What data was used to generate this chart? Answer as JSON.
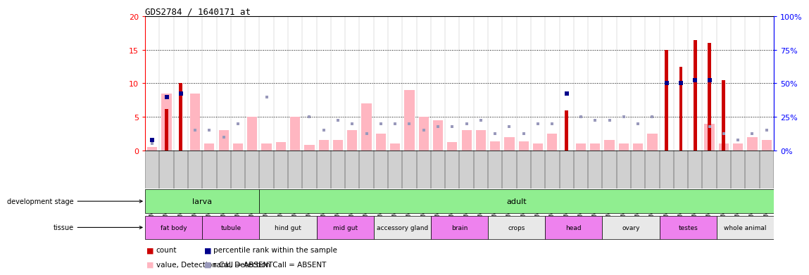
{
  "title": "GDS2784 / 1640171_at",
  "samples": [
    "GSM188092",
    "GSM188093",
    "GSM188094",
    "GSM188095",
    "GSM188100",
    "GSM188101",
    "GSM188102",
    "GSM188103",
    "GSM188072",
    "GSM188073",
    "GSM188074",
    "GSM188075",
    "GSM188076",
    "GSM188077",
    "GSM188078",
    "GSM188079",
    "GSM188080",
    "GSM188081",
    "GSM188082",
    "GSM188083",
    "GSM188084",
    "GSM188085",
    "GSM188086",
    "GSM188087",
    "GSM188088",
    "GSM188089",
    "GSM188090",
    "GSM188091",
    "GSM188096",
    "GSM188097",
    "GSM188098",
    "GSM188099",
    "GSM188104",
    "GSM188105",
    "GSM188106",
    "GSM188107",
    "GSM188108",
    "GSM188109",
    "GSM188110",
    "GSM188111",
    "GSM188112",
    "GSM188113",
    "GSM188114",
    "GSM188115"
  ],
  "count": [
    0,
    6.2,
    10.0,
    0,
    0,
    0,
    0,
    0,
    0,
    0,
    0,
    0,
    0,
    0,
    0,
    0,
    0,
    0,
    0,
    0,
    0,
    0,
    0,
    0,
    0,
    0,
    0,
    0,
    0,
    6.0,
    0,
    0,
    0,
    0,
    0,
    0,
    15.0,
    12.5,
    16.5,
    16.0,
    10.5,
    0,
    0,
    0
  ],
  "rank_pct": [
    7.5,
    40,
    42.5,
    0,
    0,
    0,
    0,
    0,
    0,
    0,
    0,
    0,
    0,
    0,
    0,
    0,
    0,
    0,
    0,
    0,
    0,
    0,
    0,
    0,
    0,
    0,
    0,
    0,
    0,
    42.5,
    0,
    0,
    0,
    0,
    0,
    0,
    50,
    50,
    52.5,
    52.5,
    0,
    0,
    0,
    0
  ],
  "absent_value": [
    0.5,
    8.5,
    0,
    8.5,
    1.0,
    3.0,
    1.0,
    5.0,
    1.0,
    1.2,
    5.0,
    0.8,
    1.5,
    1.5,
    3.0,
    7.0,
    2.5,
    1.0,
    9.0,
    5.0,
    4.5,
    1.2,
    3.0,
    3.0,
    1.3,
    2.0,
    1.3,
    1.0,
    2.5,
    0,
    1.0,
    1.0,
    1.5,
    1.0,
    1.0,
    2.5,
    0,
    0,
    0,
    4.0,
    1.0,
    1.0,
    2.0,
    1.5
  ],
  "absent_rank_pct": [
    5,
    0,
    0,
    15,
    15,
    10,
    20,
    0,
    40,
    0,
    0,
    25,
    15,
    22.5,
    20,
    12.5,
    20,
    20,
    20,
    15,
    17.5,
    17.5,
    20,
    22.5,
    12.5,
    17.5,
    12.5,
    20,
    20,
    0,
    25,
    22.5,
    22.5,
    25,
    20,
    25,
    0,
    0,
    0,
    17.5,
    12.5,
    7.5,
    12.5,
    15
  ],
  "dev_groups": [
    {
      "label": "larva",
      "start": 0,
      "end": 7
    },
    {
      "label": "adult",
      "start": 8,
      "end": 43
    }
  ],
  "tissue_groups": [
    {
      "label": "fat body",
      "start": 0,
      "end": 3,
      "violet": true
    },
    {
      "label": "tubule",
      "start": 4,
      "end": 7,
      "violet": true
    },
    {
      "label": "hind gut",
      "start": 8,
      "end": 11,
      "violet": false
    },
    {
      "label": "mid gut",
      "start": 12,
      "end": 15,
      "violet": true
    },
    {
      "label": "accessory gland",
      "start": 16,
      "end": 19,
      "violet": false
    },
    {
      "label": "brain",
      "start": 20,
      "end": 23,
      "violet": true
    },
    {
      "label": "crops",
      "start": 24,
      "end": 27,
      "violet": false
    },
    {
      "label": "head",
      "start": 28,
      "end": 31,
      "violet": true
    },
    {
      "label": "ovary",
      "start": 32,
      "end": 35,
      "violet": false
    },
    {
      "label": "testes",
      "start": 36,
      "end": 39,
      "violet": true
    },
    {
      "label": "whole animal",
      "start": 40,
      "end": 43,
      "violet": false
    }
  ],
  "yticks_left": [
    0,
    5,
    10,
    15,
    20
  ],
  "yticks_right": [
    0,
    25,
    50,
    75,
    100
  ],
  "bar_color_count": "#cc0000",
  "bar_color_absent_value": "#ffb6c1",
  "dot_color_rank": "#00008b",
  "dot_color_absent_rank": "#9999bb",
  "violet_color": "#ee82ee",
  "plain_color": "#e8e8e8",
  "green_color": "#90ee90",
  "bg_color": "#ffffff",
  "label_bg_color": "#d0d0d0"
}
